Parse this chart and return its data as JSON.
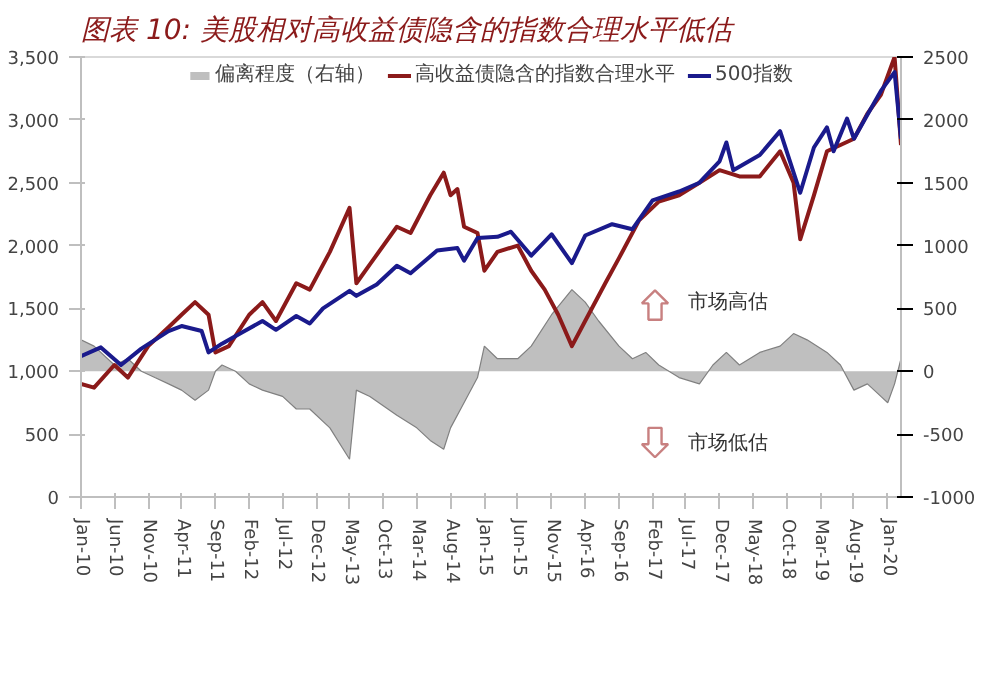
{
  "chart_data": {
    "type": "line",
    "title": "图表 10: 美股相对高收益债隐含的指数合理水平低估",
    "xlim": [
      "2010-01",
      "2020-03"
    ],
    "xticks": [
      {
        "value": "2010-01",
        "label": "Jan-10"
      },
      {
        "value": "2010-06",
        "label": "Jun-10"
      },
      {
        "value": "2010-11",
        "label": "Nov-10"
      },
      {
        "value": "2011-04",
        "label": "Apr-11"
      },
      {
        "value": "2011-09",
        "label": "Sep-11"
      },
      {
        "value": "2012-02",
        "label": "Feb-12"
      },
      {
        "value": "2012-07",
        "label": "Jul-12"
      },
      {
        "value": "2012-12",
        "label": "Dec-12"
      },
      {
        "value": "2013-05",
        "label": "May-13"
      },
      {
        "value": "2013-10",
        "label": "Oct-13"
      },
      {
        "value": "2014-03",
        "label": "Mar-14"
      },
      {
        "value": "2014-08",
        "label": "Aug-14"
      },
      {
        "value": "2015-01",
        "label": "Jan-15"
      },
      {
        "value": "2015-06",
        "label": "Jun-15"
      },
      {
        "value": "2015-11",
        "label": "Nov-15"
      },
      {
        "value": "2016-04",
        "label": "Apr-16"
      },
      {
        "value": "2016-09",
        "label": "Sep-16"
      },
      {
        "value": "2017-02",
        "label": "Feb-17"
      },
      {
        "value": "2017-07",
        "label": "Jul-17"
      },
      {
        "value": "2017-12",
        "label": "Dec-17"
      },
      {
        "value": "2018-05",
        "label": "May-18"
      },
      {
        "value": "2018-10",
        "label": "Oct-18"
      },
      {
        "value": "2019-03",
        "label": "Mar-19"
      },
      {
        "value": "2019-08",
        "label": "Aug-19"
      },
      {
        "value": "2020-01",
        "label": "Jan-20"
      }
    ],
    "ylim": [
      0,
      3500
    ],
    "yticks": [
      {
        "value": 0,
        "label": "0"
      },
      {
        "value": 500,
        "label": "500"
      },
      {
        "value": 1000,
        "label": "1,000"
      },
      {
        "value": 1500,
        "label": "1,500"
      },
      {
        "value": 2000,
        "label": "2,000"
      },
      {
        "value": 2500,
        "label": "2,500"
      },
      {
        "value": 3000,
        "label": "3,000"
      },
      {
        "value": 3500,
        "label": "3,500"
      }
    ],
    "y2lim": [
      -1000,
      2500
    ],
    "y2ticks": [
      -1000,
      -500,
      0,
      500,
      1000,
      1500,
      2000,
      2500
    ],
    "legend": "top",
    "grid": false,
    "annotations": [
      "市场高估",
      "市场低估"
    ],
    "series": [
      {
        "name": "偏离程度（右轴）",
        "type": "area",
        "axis": "y2",
        "color": "#bfbfbf",
        "x": [
          "2010-01",
          "2010-03",
          "2010-06",
          "2010-08",
          "2010-10",
          "2010-12",
          "2011-02",
          "2011-04",
          "2011-06",
          "2011-08",
          "2011-09",
          "2011-10",
          "2011-12",
          "2012-02",
          "2012-04",
          "2012-07",
          "2012-09",
          "2012-11",
          "2013-02",
          "2013-05",
          "2013-06",
          "2013-08",
          "2013-12",
          "2014-03",
          "2014-05",
          "2014-07",
          "2014-08",
          "2014-10",
          "2014-12",
          "2015-01",
          "2015-03",
          "2015-06",
          "2015-08",
          "2015-11",
          "2016-02",
          "2016-04",
          "2016-06",
          "2016-09",
          "2016-11",
          "2017-01",
          "2017-03",
          "2017-06",
          "2017-09",
          "2017-11",
          "2018-01",
          "2018-03",
          "2018-06",
          "2018-09",
          "2018-11",
          "2019-01",
          "2019-04",
          "2019-06",
          "2019-08",
          "2019-10",
          "2019-12",
          "2020-01",
          "2020-02",
          "2020-03"
        ],
        "values": [
          250,
          200,
          50,
          100,
          0,
          -50,
          -100,
          -150,
          -230,
          -150,
          0,
          50,
          0,
          -100,
          -150,
          -200,
          -300,
          -300,
          -450,
          -700,
          -150,
          -200,
          -350,
          -450,
          -550,
          -620,
          -450,
          -250,
          -50,
          200,
          100,
          100,
          200,
          450,
          650,
          550,
          400,
          200,
          100,
          150,
          50,
          -50,
          -100,
          50,
          150,
          50,
          150,
          200,
          300,
          250,
          150,
          50,
          -150,
          -100,
          -200,
          -250,
          -100,
          100
        ]
      },
      {
        "name": "高收益债隐含的指数合理水平",
        "color": "#8b1a1a",
        "x": [
          "2010-01",
          "2010-03",
          "2010-06",
          "2010-08",
          "2010-11",
          "2011-02",
          "2011-04",
          "2011-06",
          "2011-08",
          "2011-09",
          "2011-11",
          "2012-02",
          "2012-04",
          "2012-06",
          "2012-09",
          "2012-11",
          "2013-02",
          "2013-05",
          "2013-06",
          "2013-08",
          "2013-12",
          "2014-02",
          "2014-05",
          "2014-07",
          "2014-08",
          "2014-09",
          "2014-10",
          "2014-12",
          "2015-01",
          "2015-03",
          "2015-06",
          "2015-08",
          "2015-10",
          "2015-12",
          "2016-02",
          "2016-04",
          "2016-07",
          "2016-09",
          "2016-12",
          "2017-03",
          "2017-06",
          "2017-09",
          "2017-12",
          "2018-03",
          "2018-06",
          "2018-09",
          "2018-11",
          "2018-12",
          "2019-02",
          "2019-04",
          "2019-06",
          "2019-08",
          "2019-10",
          "2019-12",
          "2020-02",
          "2020-03"
        ],
        "values": [
          900,
          870,
          1050,
          950,
          1200,
          1350,
          1450,
          1550,
          1450,
          1150,
          1200,
          1450,
          1550,
          1400,
          1700,
          1650,
          1950,
          2300,
          1700,
          1850,
          2150,
          2100,
          2400,
          2580,
          2400,
          2450,
          2150,
          2100,
          1800,
          1950,
          2000,
          1800,
          1650,
          1450,
          1200,
          1400,
          1700,
          1900,
          2200,
          2350,
          2400,
          2500,
          2600,
          2550,
          2550,
          2750,
          2500,
          2050,
          2400,
          2750,
          2800,
          2850,
          3050,
          3200,
          3500,
          2800
        ]
      },
      {
        "name": "500指数",
        "color": "#1a1a8c",
        "x": [
          "2010-01",
          "2010-04",
          "2010-07",
          "2010-10",
          "2011-02",
          "2011-04",
          "2011-07",
          "2011-08",
          "2011-10",
          "2012-01",
          "2012-04",
          "2012-06",
          "2012-09",
          "2012-11",
          "2013-01",
          "2013-05",
          "2013-06",
          "2013-09",
          "2013-12",
          "2014-02",
          "2014-06",
          "2014-09",
          "2014-10",
          "2014-12",
          "2015-03",
          "2015-05",
          "2015-08",
          "2015-11",
          "2016-02",
          "2016-04",
          "2016-08",
          "2016-11",
          "2017-02",
          "2017-06",
          "2017-09",
          "2017-12",
          "2018-01",
          "2018-02",
          "2018-06",
          "2018-09",
          "2018-12",
          "2019-02",
          "2019-04",
          "2019-05",
          "2019-07",
          "2019-08",
          "2019-10",
          "2019-12",
          "2020-02",
          "2020-03"
        ],
        "values": [
          1120,
          1190,
          1050,
          1180,
          1320,
          1360,
          1320,
          1150,
          1220,
          1310,
          1400,
          1330,
          1440,
          1380,
          1500,
          1640,
          1600,
          1690,
          1840,
          1780,
          1960,
          1980,
          1880,
          2060,
          2070,
          2110,
          1920,
          2090,
          1860,
          2080,
          2170,
          2130,
          2360,
          2430,
          2500,
          2670,
          2820,
          2600,
          2720,
          2910,
          2420,
          2780,
          2940,
          2750,
          3010,
          2850,
          3040,
          3230,
          3380,
          2850
        ]
      }
    ]
  }
}
